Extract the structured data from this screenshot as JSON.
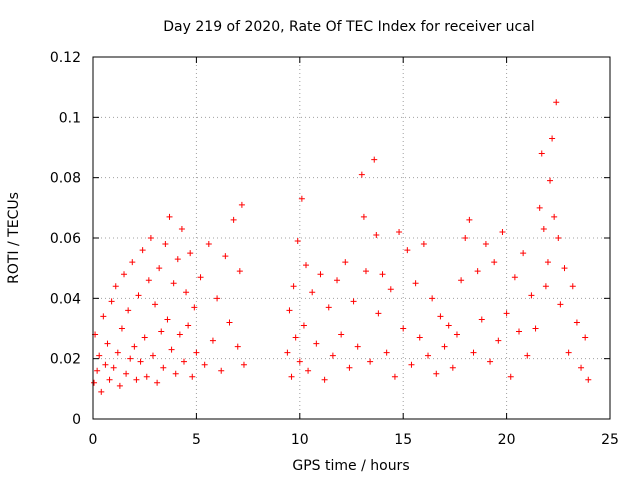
{
  "chart_data": {
    "type": "scatter",
    "title": "Day 219 of 2020, Rate Of TEC Index for receiver ucal",
    "xlabel": "GPS time / hours",
    "ylabel": "ROTI / TECUs",
    "xlim": [
      0,
      25
    ],
    "ylim": [
      0,
      0.12
    ],
    "xticks": [
      0,
      5,
      10,
      15,
      20,
      25
    ],
    "xtick_labels": [
      "0",
      "5",
      "10",
      "15",
      "20",
      "25"
    ],
    "yticks": [
      0,
      0.02,
      0.04,
      0.06,
      0.08,
      0.1,
      0.12
    ],
    "ytick_labels": [
      "0",
      "0.02",
      "0.04",
      "0.06",
      "0.08",
      "0.1",
      "0.12"
    ],
    "grid": true,
    "marker": "plus",
    "series": [
      {
        "name": "ROTI",
        "color": "#ff0000",
        "points": [
          [
            0.05,
            0.012
          ],
          [
            0.1,
            0.028
          ],
          [
            0.2,
            0.016
          ],
          [
            0.3,
            0.021
          ],
          [
            0.4,
            0.009
          ],
          [
            0.5,
            0.034
          ],
          [
            0.6,
            0.018
          ],
          [
            0.7,
            0.025
          ],
          [
            0.8,
            0.013
          ],
          [
            0.9,
            0.039
          ],
          [
            1.0,
            0.017
          ],
          [
            1.1,
            0.044
          ],
          [
            1.2,
            0.022
          ],
          [
            1.3,
            0.011
          ],
          [
            1.4,
            0.03
          ],
          [
            1.5,
            0.048
          ],
          [
            1.6,
            0.015
          ],
          [
            1.7,
            0.036
          ],
          [
            1.8,
            0.02
          ],
          [
            1.9,
            0.052
          ],
          [
            2.0,
            0.024
          ],
          [
            2.1,
            0.013
          ],
          [
            2.2,
            0.041
          ],
          [
            2.3,
            0.019
          ],
          [
            2.4,
            0.056
          ],
          [
            2.5,
            0.027
          ],
          [
            2.6,
            0.014
          ],
          [
            2.7,
            0.046
          ],
          [
            2.8,
            0.06
          ],
          [
            2.9,
            0.021
          ],
          [
            3.0,
            0.038
          ],
          [
            3.1,
            0.012
          ],
          [
            3.2,
            0.05
          ],
          [
            3.3,
            0.029
          ],
          [
            3.4,
            0.017
          ],
          [
            3.5,
            0.058
          ],
          [
            3.6,
            0.033
          ],
          [
            3.7,
            0.067
          ],
          [
            3.8,
            0.023
          ],
          [
            3.9,
            0.045
          ],
          [
            4.0,
            0.015
          ],
          [
            4.1,
            0.053
          ],
          [
            4.2,
            0.028
          ],
          [
            4.3,
            0.063
          ],
          [
            4.4,
            0.019
          ],
          [
            4.5,
            0.042
          ],
          [
            4.6,
            0.031
          ],
          [
            4.7,
            0.055
          ],
          [
            4.8,
            0.014
          ],
          [
            4.9,
            0.037
          ],
          [
            5.0,
            0.022
          ],
          [
            5.2,
            0.047
          ],
          [
            5.4,
            0.018
          ],
          [
            5.6,
            0.058
          ],
          [
            5.8,
            0.026
          ],
          [
            6.0,
            0.04
          ],
          [
            6.2,
            0.016
          ],
          [
            6.4,
            0.054
          ],
          [
            6.6,
            0.032
          ],
          [
            6.8,
            0.066
          ],
          [
            7.0,
            0.024
          ],
          [
            7.1,
            0.049
          ],
          [
            7.2,
            0.071
          ],
          [
            7.3,
            0.018
          ],
          [
            9.4,
            0.022
          ],
          [
            9.5,
            0.036
          ],
          [
            9.6,
            0.014
          ],
          [
            9.7,
            0.044
          ],
          [
            9.8,
            0.027
          ],
          [
            9.9,
            0.059
          ],
          [
            10.0,
            0.019
          ],
          [
            10.1,
            0.073
          ],
          [
            10.2,
            0.031
          ],
          [
            10.3,
            0.051
          ],
          [
            10.4,
            0.016
          ],
          [
            10.6,
            0.042
          ],
          [
            10.8,
            0.025
          ],
          [
            11.0,
            0.048
          ],
          [
            11.2,
            0.013
          ],
          [
            11.4,
            0.037
          ],
          [
            11.6,
            0.021
          ],
          [
            11.8,
            0.046
          ],
          [
            12.0,
            0.028
          ],
          [
            12.2,
            0.052
          ],
          [
            12.4,
            0.017
          ],
          [
            12.6,
            0.039
          ],
          [
            12.8,
            0.024
          ],
          [
            13.0,
            0.081
          ],
          [
            13.1,
            0.067
          ],
          [
            13.2,
            0.049
          ],
          [
            13.4,
            0.019
          ],
          [
            13.6,
            0.086
          ],
          [
            13.7,
            0.061
          ],
          [
            13.8,
            0.035
          ],
          [
            14.0,
            0.048
          ],
          [
            14.2,
            0.022
          ],
          [
            14.4,
            0.043
          ],
          [
            14.6,
            0.014
          ],
          [
            14.8,
            0.062
          ],
          [
            15.0,
            0.03
          ],
          [
            15.2,
            0.056
          ],
          [
            15.4,
            0.018
          ],
          [
            15.6,
            0.045
          ],
          [
            15.8,
            0.027
          ],
          [
            16.0,
            0.058
          ],
          [
            16.2,
            0.021
          ],
          [
            16.4,
            0.04
          ],
          [
            16.6,
            0.015
          ],
          [
            16.8,
            0.034
          ],
          [
            17.0,
            0.024
          ],
          [
            17.2,
            0.031
          ],
          [
            17.4,
            0.017
          ],
          [
            17.6,
            0.028
          ],
          [
            17.8,
            0.046
          ],
          [
            18.0,
            0.06
          ],
          [
            18.2,
            0.066
          ],
          [
            18.4,
            0.022
          ],
          [
            18.6,
            0.049
          ],
          [
            18.8,
            0.033
          ],
          [
            19.0,
            0.058
          ],
          [
            19.2,
            0.019
          ],
          [
            19.4,
            0.052
          ],
          [
            19.6,
            0.026
          ],
          [
            19.8,
            0.062
          ],
          [
            20.0,
            0.035
          ],
          [
            20.2,
            0.014
          ],
          [
            20.4,
            0.047
          ],
          [
            20.6,
            0.029
          ],
          [
            20.8,
            0.055
          ],
          [
            21.0,
            0.021
          ],
          [
            21.2,
            0.041
          ],
          [
            21.4,
            0.03
          ],
          [
            21.6,
            0.07
          ],
          [
            21.7,
            0.088
          ],
          [
            21.8,
            0.063
          ],
          [
            21.9,
            0.044
          ],
          [
            22.0,
            0.052
          ],
          [
            22.1,
            0.079
          ],
          [
            22.2,
            0.093
          ],
          [
            22.3,
            0.067
          ],
          [
            22.4,
            0.105
          ],
          [
            22.5,
            0.06
          ],
          [
            22.6,
            0.038
          ],
          [
            22.8,
            0.05
          ],
          [
            23.0,
            0.022
          ],
          [
            23.2,
            0.044
          ],
          [
            23.4,
            0.032
          ],
          [
            23.6,
            0.017
          ],
          [
            23.8,
            0.027
          ],
          [
            23.95,
            0.013
          ]
        ]
      }
    ]
  }
}
